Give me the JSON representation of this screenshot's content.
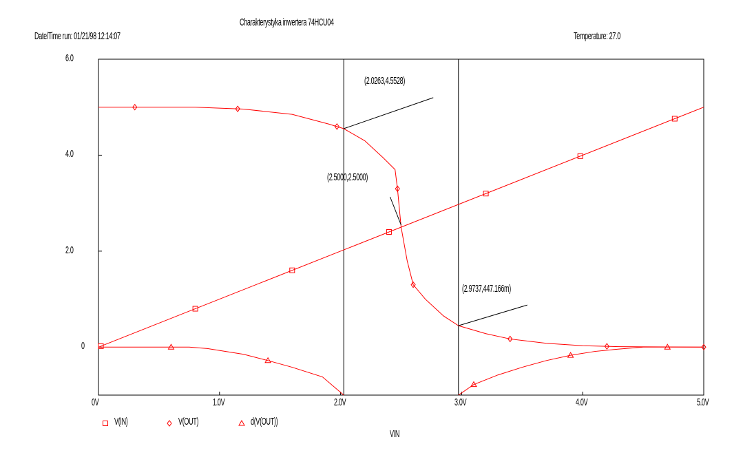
{
  "header": {
    "title": "Charakterystyka inwertera 74HCU04",
    "datetime": "Date/Time run: 01/21/98  12:14:07",
    "temperature": "Temperature: 27.0"
  },
  "chart_data": {
    "type": "line",
    "title": "Charakterystyka inwertera 74HCU04",
    "xlabel": "VIN",
    "ylabel": "",
    "xlim": [
      0,
      5.0
    ],
    "ylim": [
      -1.0,
      6.0
    ],
    "x_ticks": [
      {
        "v": 0,
        "label": "0V"
      },
      {
        "v": 1,
        "label": "1.0V"
      },
      {
        "v": 2,
        "label": "2.0V"
      },
      {
        "v": 3,
        "label": "3.0V"
      },
      {
        "v": 4,
        "label": "4.0V"
      },
      {
        "v": 5,
        "label": "5.0V"
      }
    ],
    "y_ticks": [
      {
        "v": 0,
        "label": "0"
      },
      {
        "v": 2,
        "label": "2.0"
      },
      {
        "v": 4,
        "label": "4.0"
      },
      {
        "v": 6,
        "label": "6.0"
      }
    ],
    "grid": false,
    "legend_placement": "bottom-left",
    "line_color": "#ff0000",
    "series": [
      {
        "name": "V(IN)",
        "marker": "square",
        "x": [
          0,
          5.0
        ],
        "y": [
          0,
          5.0
        ],
        "markers_x": [
          0.02,
          0.8,
          1.6,
          2.4,
          3.2,
          3.98,
          4.76
        ]
      },
      {
        "name": "V(OUT)",
        "marker": "diamond",
        "x": [
          0,
          0.8,
          1.2,
          1.6,
          1.9,
          2.0263,
          2.2,
          2.35,
          2.45,
          2.47,
          2.5,
          2.55,
          2.6,
          2.7,
          2.85,
          2.9737,
          3.2,
          3.4,
          3.7,
          4.0,
          4.3,
          5.0
        ],
        "y": [
          5.0,
          5.0,
          4.96,
          4.85,
          4.65,
          4.5528,
          4.3,
          3.95,
          3.7,
          3.3,
          2.5,
          1.8,
          1.3,
          1.0,
          0.65,
          0.447,
          0.28,
          0.17,
          0.08,
          0.03,
          0.01,
          0
        ],
        "markers_x": [
          0.3,
          1.15,
          1.97,
          2.47,
          2.6,
          3.4,
          4.2,
          5.0
        ]
      },
      {
        "name": "d(V(OUT))",
        "marker": "triangle",
        "segments": [
          {
            "x": [
              0,
              0.75,
              0.9,
              1.2,
              1.4,
              1.6,
              1.85,
              2.0263
            ],
            "y": [
              0,
              0,
              -0.03,
              -0.15,
              -0.28,
              -0.42,
              -0.62,
              -1.0
            ]
          },
          {
            "x": [
              2.9737,
              3.1,
              3.3,
              3.5,
              3.7,
              3.9,
              4.1,
              4.3,
              4.5,
              5.0
            ],
            "y": [
              -1.0,
              -0.78,
              -0.58,
              -0.42,
              -0.28,
              -0.17,
              -0.09,
              -0.04,
              0,
              0
            ]
          }
        ],
        "markers_x": [
          0.6,
          1.4,
          3.1,
          3.9,
          4.7
        ]
      }
    ],
    "cursors": [
      {
        "x": 2.0263
      },
      {
        "x": 2.9737
      }
    ],
    "annotations": [
      {
        "text": "(2.0263,4.5528)",
        "x": 2.0263,
        "y": 4.5528
      },
      {
        "text": "(2.5000,2.5000)",
        "x": 2.5,
        "y": 2.5
      },
      {
        "text": "(2.9737,447.166m)",
        "x": 2.9737,
        "y": 0.447166
      }
    ]
  }
}
